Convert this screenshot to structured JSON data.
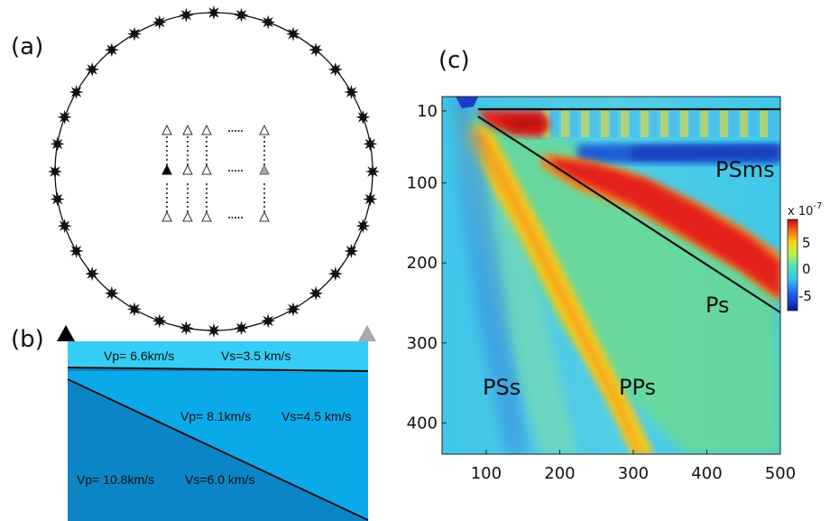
{
  "panels": {
    "a": {
      "label": "(a)",
      "sources_count": 36,
      "dots": "....."
    },
    "b": {
      "label": "(b)",
      "layers": [
        {
          "vp": "Vp= 6.6km/s",
          "vs": "Vs=3.5 km/s",
          "color": "#35cdf6"
        },
        {
          "vp": "Vp= 8.1km/s",
          "vs": "Vs=4.5 km/s",
          "color": "#0aa9ea"
        },
        {
          "vp": "Vp= 10.8km/s",
          "vs": "Vs=6.0 km/s",
          "color": "#0b85c6"
        }
      ]
    },
    "c": {
      "label": "(c)",
      "x_ticks": [
        "100",
        "200",
        "300",
        "400",
        "500"
      ],
      "y_ticks": [
        "10",
        "100",
        "200",
        "300",
        "400"
      ],
      "phases": [
        "PSms",
        "Ps",
        "PSs",
        "PPs"
      ],
      "colorbar": {
        "ticks": [
          "5",
          "0",
          "-5"
        ],
        "multiplier_base": "x 10",
        "multiplier_exp": "-7"
      }
    }
  },
  "colors": {
    "background": "#47c8e8",
    "red": "#e0241a",
    "orange": "#f5c81e",
    "green": "#76e07a",
    "blue": "#1e5fd4",
    "receiver_black": "#000000",
    "receiver_gray": "#a8a8a8"
  }
}
